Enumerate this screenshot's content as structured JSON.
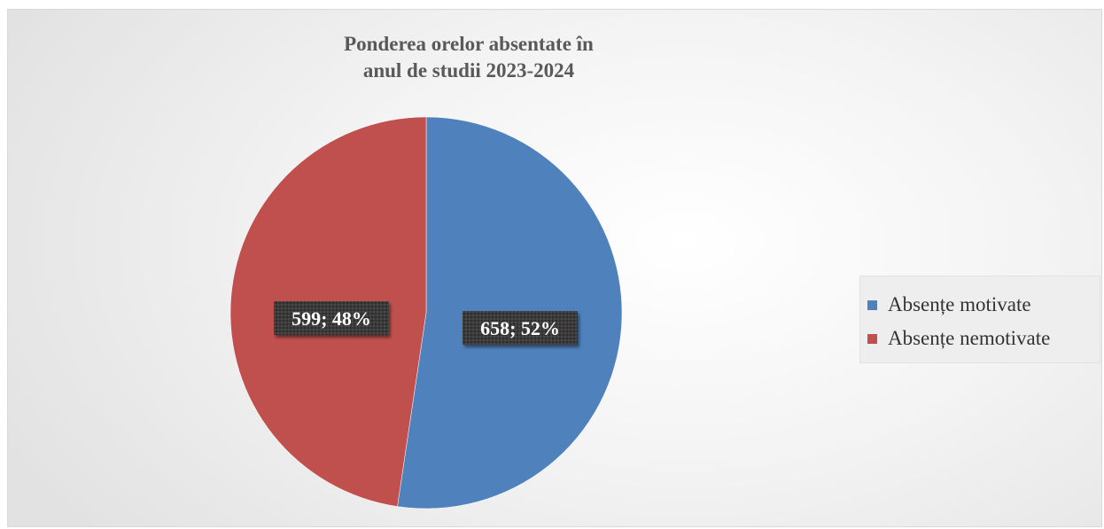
{
  "chart_data": {
    "type": "pie",
    "title_lines": [
      "Ponderea orelor absentate în",
      "anul de studii 2023-2024"
    ],
    "series": [
      {
        "categories": [
          "Absențe motivate",
          "Absențe nemotivate"
        ],
        "values": [
          658,
          599
        ],
        "percentages": [
          52,
          48
        ],
        "colors": [
          "#4f81bd",
          "#c0504d"
        ],
        "data_labels": [
          "658; 52%",
          "599; 48%"
        ]
      }
    ],
    "start_angle_deg": 0,
    "direction": "clockwise",
    "legend_position": "right",
    "label_style": "white bold text on dark textured box"
  }
}
